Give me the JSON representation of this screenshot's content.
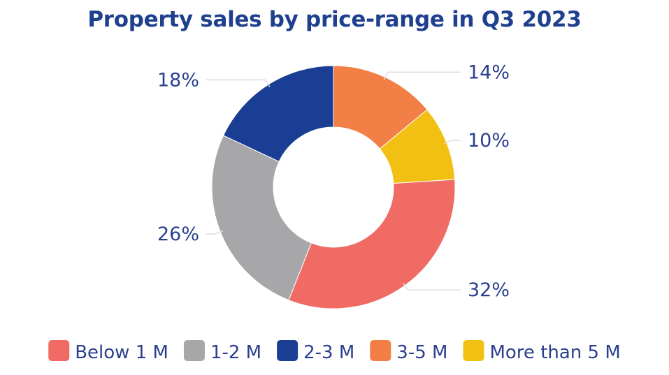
{
  "chart_data": {
    "type": "pie",
    "title": "Property sales by price-range in Q3 2023",
    "donut": true,
    "start_at": "top",
    "direction": "clockwise",
    "legend_position": "bottom",
    "slices": [
      {
        "label": "3-5 M",
        "value": 14,
        "value_label": "14%",
        "color": "#f27f45"
      },
      {
        "label": "More than 5 M",
        "value": 10,
        "value_label": "10%",
        "color": "#f2c012"
      },
      {
        "label": "Below 1 M",
        "value": 32,
        "value_label": "32%",
        "color": "#ef6b63"
      },
      {
        "label": "1-2 M",
        "value": 26,
        "value_label": "26%",
        "color": "#a7a7aa"
      },
      {
        "label": "2-3 M",
        "value": 18,
        "value_label": "18%",
        "color": "#1a3e93"
      }
    ],
    "legend": [
      {
        "label": "Below 1 M",
        "color": "#ef6b63"
      },
      {
        "label": "1-2 M",
        "color": "#a7a7aa"
      },
      {
        "label": "2-3 M",
        "color": "#1a3e93"
      },
      {
        "label": "3-5 M",
        "color": "#f27f45"
      },
      {
        "label": "More than 5 M",
        "color": "#f2c012"
      }
    ]
  }
}
